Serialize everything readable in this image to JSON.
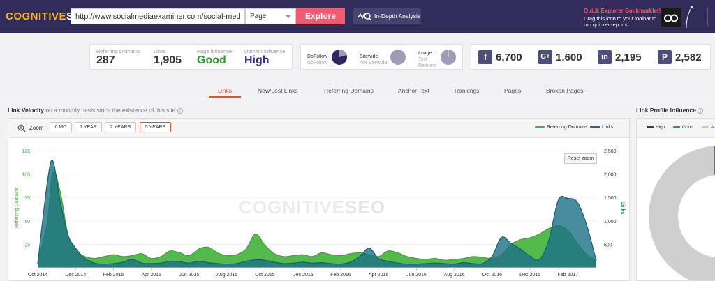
{
  "header": {
    "logo_part1": "COGNITIVE",
    "logo_part2": "SEO",
    "url_value": "http://www.socialmediaexaminer.com/social-media-marketing-industry-report",
    "select_value": "Page",
    "explore_label": "Explore",
    "in_depth_label": "In-Depth Analysis",
    "bookmarklet_title": "Quick Explorer Bookmarklet!",
    "bookmarklet_line1": "Drag this icon to your toolbar to",
    "bookmarklet_line2": "run quicker reports"
  },
  "stats": {
    "referring_domains_label": "Referring Domains",
    "referring_domains_value": "287",
    "links_label": "Links",
    "links_value": "1,905",
    "page_influence_label": "Page Influence",
    "page_influence_value": "Good",
    "domain_influence_label": "Domain Influence",
    "domain_influence_value": "High"
  },
  "pies": {
    "dofollow": "DoFollow",
    "nofollow": "NoFollow",
    "sitewide": "Sitewide",
    "not_sitewide": "Not Sitewide",
    "image": "Image",
    "text": "Text",
    "redirect": "Redirect"
  },
  "social": {
    "facebook_value": "6,700",
    "google_value": "1,600",
    "linkedin_value": "2,195",
    "pinterest_value": "2,582"
  },
  "tabs": [
    "Links",
    "New/Lost Links",
    "Referring Domains",
    "Anchor Text",
    "Rankings",
    "Pages",
    "Broken Pages"
  ],
  "link_velocity": {
    "title": "Link Velocity",
    "subtitle": "on a monthly basis since the existence of this site",
    "zoom_label": "Zoom",
    "zoom_buttons": [
      "6 MO",
      "1 YEAR",
      "2 YEARS",
      "5 YEARS"
    ],
    "reset_zoom": "Reset zoom",
    "watermark_a": "COGNITIVE",
    "watermark_b": "SEO"
  },
  "link_profile": {
    "title": "Link Profile Influence",
    "legend": [
      "High",
      "Good",
      "A"
    ]
  },
  "colors": {
    "referring_domains": "#43b33b",
    "links": "#1c6f86",
    "accent": "#e0562b",
    "header_bg": "#312c5a"
  },
  "chart_data": {
    "type": "area",
    "x_ticks": [
      "Oct 2014",
      "Dec 2014",
      "Feb 2015",
      "Apr 2015",
      "Jun 2015",
      "Aug 2015",
      "Oct 2015",
      "Dec 2015",
      "Feb 2016",
      "Apr 2016",
      "Jun 2016",
      "Aug 2016",
      "Oct 2016",
      "Dec 2016",
      "Feb 2017"
    ],
    "left_axis": {
      "label": "Referring Domains",
      "ticks": [
        "25",
        "50",
        "75",
        "100",
        "125"
      ],
      "ylim": [
        0,
        125
      ]
    },
    "right_axis": {
      "label": "Links",
      "ticks": [
        "500",
        "1,000",
        "1,500",
        "2,000",
        "2,500"
      ],
      "ylim": [
        0,
        2500
      ]
    },
    "legend": [
      "Referring Domains",
      "Links"
    ],
    "series": [
      {
        "name": "Referring Domains",
        "axis": "left",
        "x": [
          0,
          0.5,
          0.8,
          1.2,
          1.6,
          2,
          2.5,
          3,
          3.5,
          4,
          4.5,
          5,
          5.5,
          6,
          6.5,
          7,
          7.5,
          8,
          8.5,
          9,
          9.5,
          10,
          10.5,
          11,
          11.5,
          12,
          12.5,
          13,
          13.5,
          14,
          14.5,
          15,
          15.5,
          16,
          16.5,
          17,
          17.5,
          18,
          18.5,
          19,
          19.5,
          20,
          20.5,
          21,
          21.5,
          22,
          22.5,
          23,
          23.5,
          24,
          24.5,
          25,
          25.5,
          26,
          26.5,
          27,
          27.5,
          28,
          28.5,
          29,
          29.5
        ],
        "values": [
          6,
          48,
          102,
          80,
          35,
          18,
          12,
          10,
          12,
          14,
          12,
          13,
          15,
          10,
          12,
          18,
          16,
          13,
          20,
          22,
          16,
          13,
          14,
          20,
          36,
          24,
          15,
          12,
          13,
          14,
          12,
          16,
          14,
          13,
          15,
          16,
          14,
          12,
          18,
          16,
          12,
          10,
          9,
          10,
          8,
          9,
          10,
          12,
          11,
          10,
          14,
          25,
          30,
          32,
          36,
          42,
          45,
          40,
          26,
          14,
          8
        ]
      },
      {
        "name": "Links",
        "axis": "right",
        "x": [
          0,
          0.5,
          0.8,
          1.2,
          1.6,
          2,
          2.5,
          3,
          3.5,
          4,
          4.5,
          5,
          5.5,
          6,
          6.5,
          7,
          7.5,
          8,
          8.5,
          9,
          9.5,
          10,
          10.5,
          11,
          11.5,
          12,
          12.5,
          13,
          13.5,
          14,
          14.5,
          15,
          15.5,
          16,
          16.5,
          17,
          17.5,
          18,
          18.5,
          19,
          19.5,
          20,
          20.5,
          21,
          21.5,
          22,
          22.5,
          23,
          23.5,
          24,
          24.5,
          25,
          25.5,
          26,
          26.5,
          27,
          27.5,
          28,
          28.5,
          29,
          29.5
        ],
        "values": [
          80,
          1800,
          2280,
          1400,
          700,
          420,
          200,
          100,
          80,
          90,
          120,
          180,
          100,
          90,
          100,
          140,
          130,
          100,
          140,
          110,
          90,
          80,
          90,
          140,
          170,
          160,
          120,
          90,
          100,
          120,
          100,
          110,
          90,
          80,
          120,
          240,
          420,
          200,
          140,
          100,
          80,
          80,
          90,
          100,
          90,
          80,
          110,
          90,
          90,
          250,
          650,
          520,
          400,
          250,
          180,
          600,
          1450,
          1480,
          1400,
          900,
          150
        ]
      }
    ]
  }
}
